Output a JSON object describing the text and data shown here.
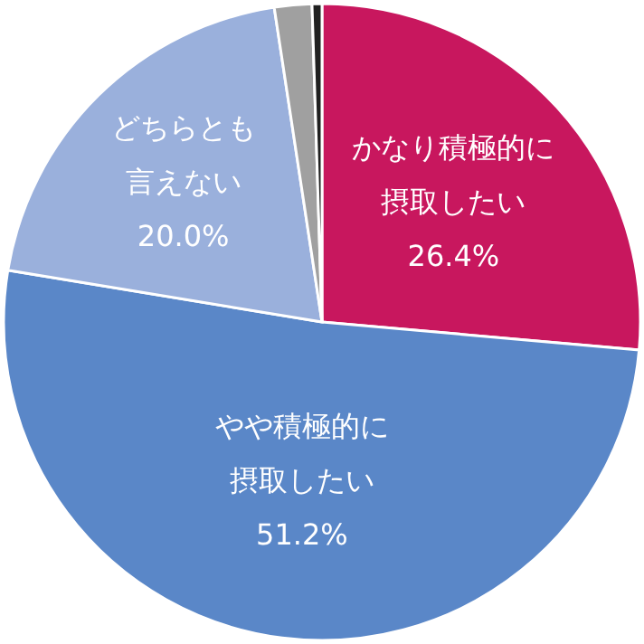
{
  "chart_data": {
    "type": "pie",
    "categories": [
      "かなり積極的に摂取したい",
      "やや積極的に摂取したい",
      "どちらとも言えない",
      null,
      null
    ],
    "values": [
      26.4,
      51.2,
      20.0,
      1.9,
      0.5
    ],
    "colors": [
      "#c8175e",
      "#5a87c8",
      "#9ab0dc",
      "#a0a0a0",
      "#202020"
    ],
    "value_labels": [
      "26.4%",
      "51.2%",
      "20.0%",
      null,
      null
    ]
  }
}
